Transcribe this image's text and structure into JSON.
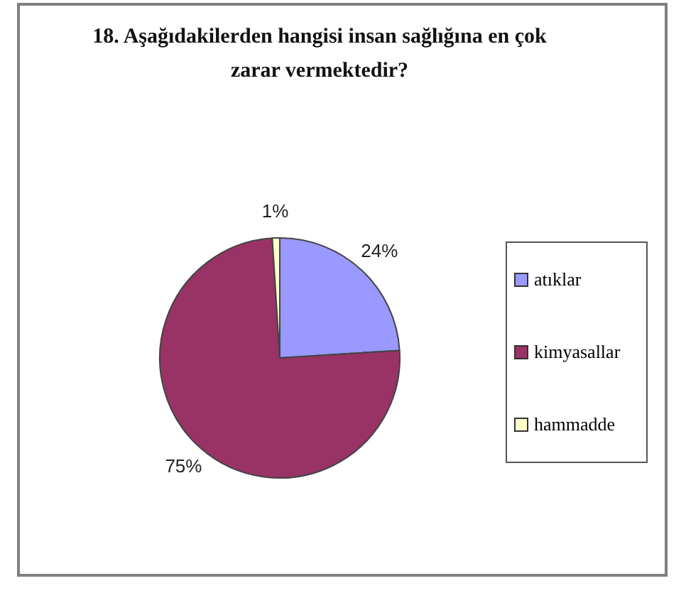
{
  "chart_data": {
    "type": "pie",
    "title": "18. Aşağıdakilerden hangisi insan sağlığına en çok zarar vermektedir?",
    "categories": [
      "atıklar",
      "kimyasallar",
      "hammadde"
    ],
    "values": [
      24,
      75,
      1
    ],
    "colors": [
      "#9999ff",
      "#993366",
      "#ffffcc"
    ],
    "value_labels": [
      "24%",
      "75%",
      "1%"
    ],
    "legend": "right"
  }
}
